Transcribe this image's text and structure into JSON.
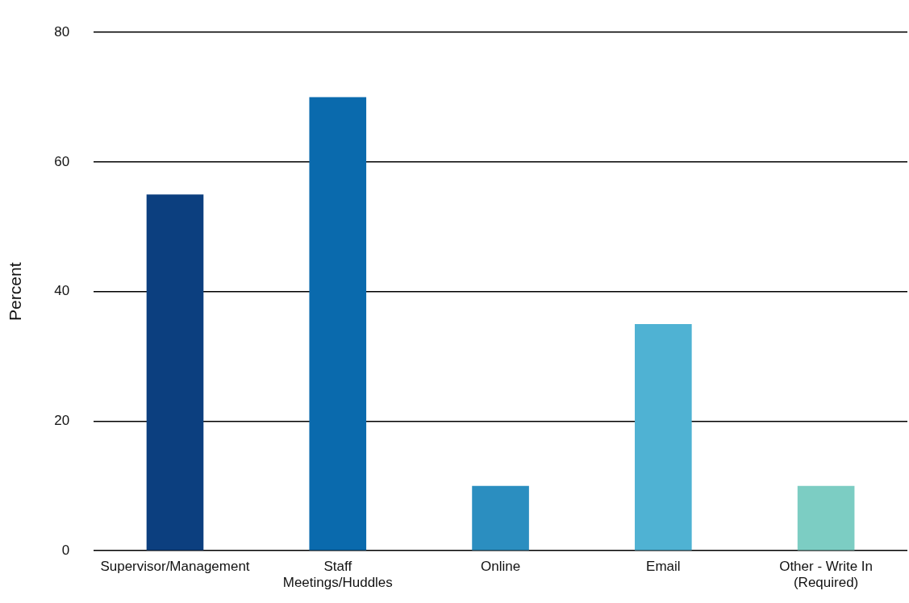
{
  "chart_data": {
    "type": "bar",
    "ylabel": "Percent",
    "categories": [
      "Supervisor/Management",
      "Staff Meetings/Huddles",
      "Online",
      "Email",
      "Other - Write In (Required)"
    ],
    "values": [
      55,
      70,
      10,
      35,
      10
    ],
    "colors": [
      "#0c3f7f",
      "#0a6aad",
      "#2b8ec0",
      "#4fb2d3",
      "#7ccdc3"
    ],
    "ylim": [
      0,
      80
    ],
    "yticks": [
      0,
      20,
      40,
      60,
      80
    ],
    "grid": "y",
    "legend": false
  }
}
